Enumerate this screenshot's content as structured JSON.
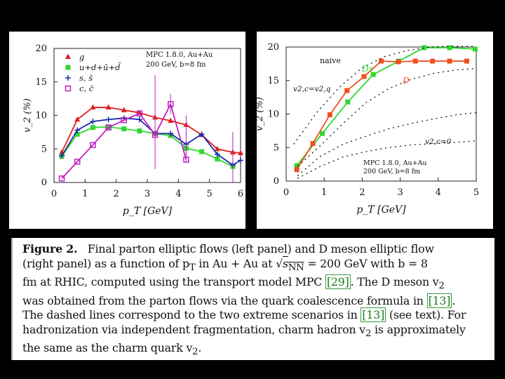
{
  "chart_data": [
    {
      "type": "line",
      "name": "parton-v2",
      "xlabel": "p_T [GeV]",
      "ylabel": "v_2 (%)",
      "xlim": [
        0,
        6
      ],
      "ylim": [
        0,
        20
      ],
      "xticks": [
        "0",
        "1",
        "2",
        "3",
        "4",
        "5",
        "6"
      ],
      "yticks": [
        "0",
        "5",
        "10",
        "15",
        "20"
      ],
      "annotation": [
        "MPC 1.8.0, Au+Au",
        "200 GeV, b=8 fm"
      ],
      "legend": [
        {
          "label": "g",
          "color": "#e0201a",
          "marker": "triangle"
        },
        {
          "label": "u+d+ū+d̄",
          "color": "#2fd82f",
          "marker": "square"
        },
        {
          "label": "s, s̄",
          "color": "#1a2aa8",
          "marker": "plus"
        },
        {
          "label": "c, c̄",
          "color": "#c020c0",
          "marker": "open-square"
        }
      ],
      "series": [
        {
          "name": "g",
          "color": "#e0201a",
          "marker": "triangle",
          "x": [
            0.25,
            0.75,
            1.25,
            1.75,
            2.25,
            2.75,
            3.25,
            3.75,
            4.25,
            4.75,
            5.25,
            5.75,
            6.0
          ],
          "y": [
            4.5,
            9.4,
            11.2,
            11.2,
            10.8,
            10.4,
            9.7,
            9.2,
            8.6,
            7.1,
            5.0,
            4.5,
            4.4
          ]
        },
        {
          "name": "u+d+ū+d̄",
          "color": "#2fd82f",
          "marker": "square",
          "x": [
            0.25,
            0.75,
            1.25,
            1.75,
            2.25,
            2.75,
            3.25,
            3.75,
            4.25,
            4.75,
            5.25,
            5.75
          ],
          "y": [
            3.9,
            7.2,
            8.2,
            8.3,
            8.0,
            7.7,
            7.3,
            7.0,
            5.1,
            4.6,
            3.5,
            2.4
          ]
        },
        {
          "name": "s, s̄",
          "color": "#1a2aa8",
          "marker": "plus",
          "x": [
            0.25,
            0.75,
            1.25,
            1.75,
            2.25,
            2.75,
            3.25,
            3.75,
            4.25,
            4.75,
            5.25,
            5.75,
            6.0
          ],
          "y": [
            4.0,
            7.8,
            9.1,
            9.4,
            9.6,
            9.4,
            7.3,
            7.3,
            5.7,
            7.2,
            4.2,
            2.6,
            3.3
          ]
        },
        {
          "name": "c, c̄",
          "color": "#c020c0",
          "marker": "open-square",
          "x": [
            0.25,
            0.75,
            1.25,
            1.75,
            2.25,
            2.75,
            3.25,
            3.75,
            4.25
          ],
          "y": [
            0.6,
            3.1,
            5.6,
            8.2,
            9.3,
            10.3,
            7.1,
            11.7,
            3.4
          ]
        }
      ]
    },
    {
      "type": "line",
      "name": "D-meson-v2",
      "xlabel": "p_T [GeV]",
      "ylabel": "v_2 (%)",
      "xlim": [
        0,
        5
      ],
      "ylim": [
        0,
        20
      ],
      "xticks": [
        "0",
        "1",
        "2",
        "3",
        "4",
        "5"
      ],
      "yticks": [
        "0",
        "5",
        "10",
        "15",
        "20"
      ],
      "annotation": [
        "MPC 1.8.0, Au+Au",
        "200 GeV, b=8 fm"
      ],
      "labels": [
        "naive",
        "v2,c=v2,q",
        "v2,c=0",
        "Ds",
        "D"
      ],
      "series": [
        {
          "name": "Ds",
          "color": "#2fd82f",
          "marker": "square",
          "x": [
            0.28,
            0.95,
            1.62,
            2.29,
            2.96,
            3.63,
            4.3,
            4.97
          ],
          "y": [
            2.3,
            7.1,
            11.8,
            15.9,
            17.9,
            19.9,
            19.9,
            19.7
          ]
        },
        {
          "name": "D",
          "color": "#f05020",
          "marker": "square",
          "x": [
            0.28,
            0.7,
            1.15,
            1.6,
            2.05,
            2.5,
            2.95,
            3.4,
            3.85,
            4.3,
            4.75
          ],
          "y": [
            1.7,
            5.6,
            9.9,
            13.5,
            15.6,
            17.9,
            17.8,
            17.9,
            17.9,
            17.9,
            17.9
          ]
        },
        {
          "name": "naive",
          "dashed": true,
          "color": "#000000",
          "x": [
            0.2,
            0.8,
            1.4,
            2.0,
            2.6,
            3.2,
            3.8,
            4.4,
            5.0
          ],
          "y": [
            5.5,
            10.2,
            14.0,
            16.9,
            18.6,
            19.5,
            20.0,
            20.1,
            20.1
          ]
        },
        {
          "name": "v2,c=v2,q",
          "dashed": true,
          "color": "#000000",
          "x": [
            0.3,
            0.9,
            1.5,
            2.1,
            2.7,
            3.3,
            3.9,
            4.5,
            5.0
          ],
          "y": [
            2.2,
            5.3,
            8.6,
            11.7,
            13.8,
            15.2,
            16.1,
            16.6,
            16.8
          ]
        },
        {
          "name": "v2,c=0",
          "dashed": true,
          "color": "#000000",
          "x": [
            0.3,
            0.9,
            1.5,
            2.1,
            2.7,
            3.3,
            3.9,
            4.5,
            5.0
          ],
          "y": [
            0.8,
            3.7,
            5.5,
            6.7,
            7.8,
            8.6,
            9.3,
            9.9,
            10.2
          ]
        },
        {
          "name": "lower-bound",
          "dashed": true,
          "color": "#000000",
          "x": [
            0.3,
            0.9,
            1.5,
            2.1,
            2.7,
            3.3,
            3.9,
            4.5,
            5.0
          ],
          "y": [
            0.4,
            2.2,
            3.6,
            4.4,
            5.0,
            5.4,
            5.6,
            5.8,
            6.0
          ]
        }
      ]
    }
  ],
  "caption": {
    "line1": "Final parton elliptic flows (left panel) and D meson elliptic flow",
    "line2a": "(right panel) as a function of p",
    "line2b": "in Au + Au at",
    "line2c": "= 200 GeV with b = 8",
    "line3a": "fm at RHIC, computed using the transport model MPC",
    "line3b": ". The D meson v",
    "line4a": "was obtained from the parton flows via the quark coalescence formula in",
    "line5a": "The dashed lines correspond to the two extreme scenarios in",
    "line5b": "(see text). For",
    "line6": "hadronization via independent fragmentation, charm hadron v",
    "line6b": "is approximately",
    "line7": "the same as the charm quark v",
    "label": "Figure 2.",
    "sub_T": "T",
    "sub_2": "2",
    "sqrt": "√",
    "sNN": "s",
    "sNN_sub": "NN",
    "cite1": "[29]",
    "cite2": "[13]",
    "cite3": "[13]",
    "tail7": "."
  }
}
